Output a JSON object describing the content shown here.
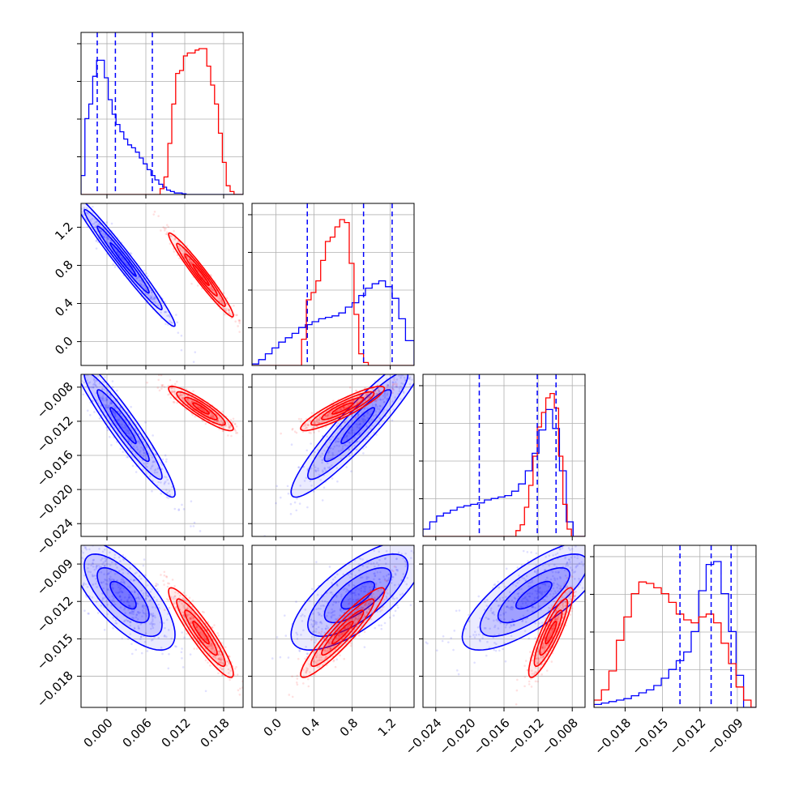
{
  "colors": {
    "blue": "#0000ff",
    "red": "#ff0000",
    "grid": "#b0b0b0"
  },
  "chart_data": {
    "type": "corner",
    "grid": true,
    "ndim": 4,
    "ranges": [
      [
        -0.004,
        0.021
      ],
      [
        -0.25,
        1.45
      ],
      [
        -0.0255,
        -0.0065
      ],
      [
        -0.0205,
        -0.0075
      ]
    ],
    "tick_values": [
      [
        0.0,
        0.006,
        0.012,
        0.018
      ],
      [
        0.0,
        0.4,
        0.8,
        1.2
      ],
      [
        -0.024,
        -0.02,
        -0.016,
        -0.012,
        -0.008
      ],
      [
        -0.018,
        -0.015,
        -0.012,
        -0.009
      ]
    ],
    "tick_labels": [
      [
        "0.000",
        "0.006",
        "0.012",
        "0.018"
      ],
      [
        "0.0",
        "0.4",
        "0.8",
        "1.2"
      ],
      [
        "−0.024",
        "−0.020",
        "−0.016",
        "−0.012",
        "−0.008"
      ],
      [
        "−0.018",
        "−0.015",
        "−0.012",
        "−0.009"
      ]
    ],
    "quantiles": [
      [
        -0.0015,
        0.0013,
        0.007
      ],
      [
        0.33,
        0.92,
        1.22
      ],
      [
        -0.0189,
        -0.0121,
        -0.0099
      ],
      [
        -0.0136,
        -0.0111,
        -0.0095
      ]
    ],
    "series": [
      {
        "color": "blue",
        "mean": [
          0.0025,
          0.86,
          -0.0125,
          -0.0115
        ],
        "sd": [
          0.004,
          0.35,
          0.0042,
          0.0022
        ],
        "corr": [
          [
            1,
            -0.98,
            -0.95,
            -0.72
          ],
          [
            -0.98,
            1,
            0.93,
            0.72
          ],
          [
            -0.95,
            0.93,
            1,
            0.76
          ],
          [
            -0.72,
            0.72,
            0.76,
            1
          ]
        ],
        "hist_x": [
          [
            -0.004,
            -0.0034,
            -0.0028,
            -0.0022,
            -0.0016,
            -0.001,
            -0.0004,
            0.0002,
            0.0008,
            0.0014,
            0.002,
            0.0026,
            0.0032,
            0.0038,
            0.0044,
            0.005,
            0.0056,
            0.0062,
            0.0068,
            0.0074,
            0.008,
            0.0086,
            0.0092,
            0.0098,
            0.0104,
            0.011,
            0.0116,
            0.0122,
            0.0128,
            0.0134,
            0.014,
            0.021
          ],
          [
            -0.25,
            -0.18,
            -0.11,
            -0.04,
            0.03,
            0.1,
            0.17,
            0.24,
            0.31,
            0.38,
            0.45,
            0.52,
            0.59,
            0.66,
            0.73,
            0.8,
            0.87,
            0.94,
            1.01,
            1.08,
            1.15,
            1.22,
            1.29,
            1.36,
            1.45
          ],
          [
            -0.0255,
            -0.0247,
            -0.0239,
            -0.0231,
            -0.0223,
            -0.0215,
            -0.0207,
            -0.0199,
            -0.0191,
            -0.0183,
            -0.0175,
            -0.0167,
            -0.0159,
            -0.0151,
            -0.0143,
            -0.0135,
            -0.0127,
            -0.0119,
            -0.0111,
            -0.0103,
            -0.0095,
            -0.0087,
            -0.0079,
            -0.0065
          ],
          [
            -0.0205,
            -0.0199,
            -0.0193,
            -0.0187,
            -0.0181,
            -0.0175,
            -0.0169,
            -0.0163,
            -0.0157,
            -0.0151,
            -0.0145,
            -0.0139,
            -0.0133,
            -0.0127,
            -0.0121,
            -0.0115,
            -0.0109,
            -0.0103,
            -0.0097,
            -0.0091,
            -0.0085,
            -0.0079,
            -0.0075
          ]
        ],
        "hist_y": [
          [
            0.13,
            0.52,
            0.62,
            0.81,
            0.92,
            0.92,
            0.8,
            0.65,
            0.55,
            0.48,
            0.43,
            0.38,
            0.34,
            0.32,
            0.29,
            0.25,
            0.21,
            0.17,
            0.13,
            0.1,
            0.07,
            0.05,
            0.03,
            0.02,
            0.01,
            0.01,
            0.005,
            0.0,
            0.0,
            0.0,
            0.0
          ],
          [
            0.01,
            0.04,
            0.08,
            0.12,
            0.16,
            0.19,
            0.22,
            0.26,
            0.28,
            0.3,
            0.32,
            0.33,
            0.34,
            0.36,
            0.4,
            0.43,
            0.48,
            0.53,
            0.56,
            0.58,
            0.54,
            0.46,
            0.32,
            0.17,
            0.0
          ],
          [
            0.05,
            0.1,
            0.14,
            0.16,
            0.18,
            0.2,
            0.21,
            0.22,
            0.23,
            0.25,
            0.26,
            0.27,
            0.28,
            0.31,
            0.36,
            0.45,
            0.57,
            0.73,
            0.87,
            0.74,
            0.45,
            0.1,
            0.0
          ],
          [
            0.02,
            0.03,
            0.04,
            0.05,
            0.06,
            0.08,
            0.1,
            0.12,
            0.15,
            0.2,
            0.26,
            0.32,
            0.38,
            0.52,
            0.8,
            0.98,
            1.0,
            0.78,
            0.52,
            0.22,
            0.0,
            0.0
          ]
        ]
      },
      {
        "color": "red",
        "mean": [
          0.0145,
          0.7,
          -0.0105,
          -0.0145
        ],
        "sd": [
          0.0025,
          0.22,
          0.0013,
          0.0018
        ],
        "corr": [
          [
            1,
            -0.97,
            -0.9,
            -0.92
          ],
          [
            -0.97,
            1,
            0.9,
            0.93
          ],
          [
            -0.9,
            0.9,
            1,
            0.88
          ],
          [
            -0.92,
            0.93,
            0.88,
            1
          ]
        ],
        "hist_x": [
          [
            -0.004,
            0.0082,
            0.0088,
            0.0094,
            0.01,
            0.0106,
            0.0112,
            0.0118,
            0.0124,
            0.013,
            0.0136,
            0.0142,
            0.0148,
            0.0154,
            0.016,
            0.0166,
            0.0172,
            0.0178,
            0.0184,
            0.019,
            0.0196,
            0.021
          ],
          [
            -0.25,
            0.27,
            0.32,
            0.37,
            0.42,
            0.47,
            0.52,
            0.57,
            0.62,
            0.67,
            0.72,
            0.77,
            0.82,
            0.87,
            0.92,
            0.97,
            1.45
          ],
          [
            -0.0255,
            -0.0146,
            -0.0141,
            -0.0136,
            -0.0131,
            -0.0126,
            -0.0121,
            -0.0116,
            -0.0111,
            -0.0106,
            -0.0101,
            -0.0096,
            -0.0091,
            -0.0086,
            -0.0081,
            -0.0065
          ],
          [
            -0.0205,
            -0.0199,
            -0.0193,
            -0.0187,
            -0.0181,
            -0.0175,
            -0.0169,
            -0.0163,
            -0.0157,
            -0.0151,
            -0.0145,
            -0.0139,
            -0.0133,
            -0.0127,
            -0.0121,
            -0.0115,
            -0.0109,
            -0.0103,
            -0.0097,
            -0.0091,
            -0.0085,
            -0.0079,
            -0.0075
          ]
        ],
        "hist_y": [
          [
            0.0,
            0.04,
            0.12,
            0.35,
            0.62,
            0.83,
            0.85,
            0.95,
            0.97,
            0.97,
            0.99,
            1.0,
            1.0,
            0.88,
            0.75,
            0.62,
            0.42,
            0.22,
            0.06,
            0.02,
            0.0
          ],
          [
            0.0,
            0.18,
            0.45,
            0.5,
            0.58,
            0.72,
            0.85,
            0.88,
            0.95,
            1.0,
            0.98,
            0.7,
            0.35,
            0.08,
            0.02,
            0.0
          ],
          [
            0.0,
            0.04,
            0.08,
            0.2,
            0.35,
            0.55,
            0.75,
            0.85,
            0.95,
            0.98,
            0.88,
            0.55,
            0.22,
            0.05,
            0.0
          ],
          [
            0.05,
            0.12,
            0.25,
            0.46,
            0.62,
            0.78,
            0.86,
            0.85,
            0.82,
            0.78,
            0.72,
            0.64,
            0.6,
            0.58,
            0.62,
            0.64,
            0.58,
            0.44,
            0.3,
            0.14,
            0.05,
            0.0
          ]
        ]
      }
    ]
  }
}
